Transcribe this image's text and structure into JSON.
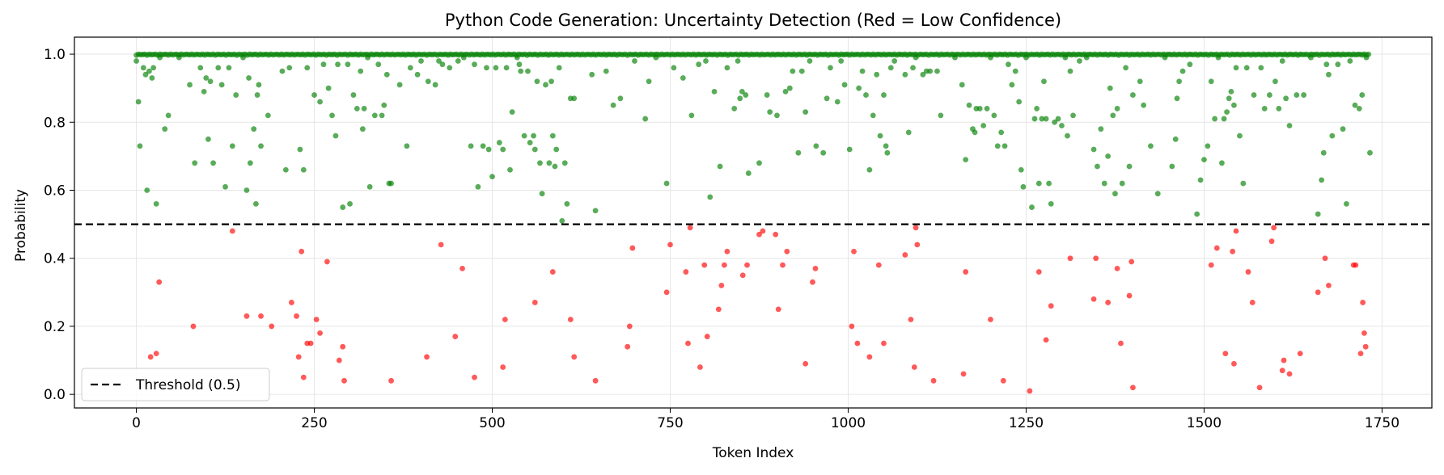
{
  "chart_data": {
    "type": "scatter",
    "title": "Python Code Generation: Uncertainty Detection (Red = Low Confidence)",
    "xlabel": "Token Index",
    "ylabel": "Probability",
    "xlim": [
      -87,
      1820
    ],
    "ylim": [
      -0.04,
      1.05
    ],
    "xticks": [
      0,
      250,
      500,
      750,
      1000,
      1250,
      1500,
      1750
    ],
    "yticks": [
      0.0,
      0.2,
      0.4,
      0.6,
      0.8,
      1.0
    ],
    "grid": true,
    "legend": {
      "position": "lower-left",
      "entries": [
        "Threshold (0.5)"
      ]
    },
    "threshold": {
      "value": 0.5,
      "label": "Threshold (0.5)",
      "style": "dashed",
      "color": "#000000"
    },
    "colors": {
      "high_confidence": "#008000",
      "low_confidence": "#ff0000"
    },
    "token_count": 1734,
    "high_confidence_points": [
      [
        0,
        0.98
      ],
      [
        3,
        0.86
      ],
      [
        5,
        0.73
      ],
      [
        10,
        0.96
      ],
      [
        13,
        0.94
      ],
      [
        15,
        0.6
      ],
      [
        18,
        0.95
      ],
      [
        22,
        0.93
      ],
      [
        24,
        0.96
      ],
      [
        28,
        0.56
      ],
      [
        33,
        0.99
      ],
      [
        40,
        0.78
      ],
      [
        45,
        0.82
      ],
      [
        60,
        0.99
      ],
      [
        75,
        0.91
      ],
      [
        82,
        0.68
      ],
      [
        90,
        0.96
      ],
      [
        95,
        0.89
      ],
      [
        98,
        0.93
      ],
      [
        101,
        0.75
      ],
      [
        104,
        0.92
      ],
      [
        108,
        0.68
      ],
      [
        115,
        0.96
      ],
      [
        120,
        0.91
      ],
      [
        125,
        0.61
      ],
      [
        130,
        0.96
      ],
      [
        135,
        0.73
      ],
      [
        140,
        0.88
      ],
      [
        150,
        0.99
      ],
      [
        155,
        0.6
      ],
      [
        158,
        0.93
      ],
      [
        160,
        0.68
      ],
      [
        165,
        0.78
      ],
      [
        168,
        0.56
      ],
      [
        170,
        0.88
      ],
      [
        172,
        0.91
      ],
      [
        175,
        0.73
      ],
      [
        185,
        0.82
      ],
      [
        205,
        0.95
      ],
      [
        210,
        0.66
      ],
      [
        215,
        0.96
      ],
      [
        230,
        0.72
      ],
      [
        235,
        0.66
      ],
      [
        240,
        0.96
      ],
      [
        250,
        0.88
      ],
      [
        258,
        0.86
      ],
      [
        263,
        0.97
      ],
      [
        270,
        0.9
      ],
      [
        275,
        0.82
      ],
      [
        280,
        0.76
      ],
      [
        283,
        0.97
      ],
      [
        290,
        0.55
      ],
      [
        297,
        0.97
      ],
      [
        300,
        0.56
      ],
      [
        305,
        0.88
      ],
      [
        310,
        0.84
      ],
      [
        315,
        0.95
      ],
      [
        318,
        0.78
      ],
      [
        320,
        0.84
      ],
      [
        325,
        0.99
      ],
      [
        328,
        0.61
      ],
      [
        335,
        0.82
      ],
      [
        340,
        0.97
      ],
      [
        345,
        0.82
      ],
      [
        348,
        0.85
      ],
      [
        352,
        0.94
      ],
      [
        355,
        0.62
      ],
      [
        358,
        0.62
      ],
      [
        370,
        0.91
      ],
      [
        380,
        0.73
      ],
      [
        385,
        0.96
      ],
      [
        395,
        0.94
      ],
      [
        400,
        0.98
      ],
      [
        410,
        0.92
      ],
      [
        420,
        0.91
      ],
      [
        425,
        0.98
      ],
      [
        430,
        0.97
      ],
      [
        440,
        0.96
      ],
      [
        452,
        0.98
      ],
      [
        460,
        0.99
      ],
      [
        470,
        0.73
      ],
      [
        475,
        0.97
      ],
      [
        480,
        0.61
      ],
      [
        487,
        0.73
      ],
      [
        492,
        0.96
      ],
      [
        495,
        0.72
      ],
      [
        500,
        0.64
      ],
      [
        505,
        0.96
      ],
      [
        510,
        0.74
      ],
      [
        515,
        0.72
      ],
      [
        520,
        0.96
      ],
      [
        525,
        0.66
      ],
      [
        528,
        0.83
      ],
      [
        535,
        0.99
      ],
      [
        538,
        0.97
      ],
      [
        540,
        0.95
      ],
      [
        545,
        0.76
      ],
      [
        550,
        0.95
      ],
      [
        553,
        0.74
      ],
      [
        558,
        0.76
      ],
      [
        560,
        0.72
      ],
      [
        563,
        0.92
      ],
      [
        567,
        0.68
      ],
      [
        570,
        0.59
      ],
      [
        575,
        0.91
      ],
      [
        580,
        0.68
      ],
      [
        583,
        0.92
      ],
      [
        585,
        0.76
      ],
      [
        588,
        0.67
      ],
      [
        590,
        0.72
      ],
      [
        594,
        0.96
      ],
      [
        598,
        0.51
      ],
      [
        602,
        0.68
      ],
      [
        605,
        0.56
      ],
      [
        610,
        0.87
      ],
      [
        615,
        0.87
      ],
      [
        640,
        0.94
      ],
      [
        645,
        0.54
      ],
      [
        660,
        0.95
      ],
      [
        670,
        0.85
      ],
      [
        680,
        0.87
      ],
      [
        700,
        0.98
      ],
      [
        715,
        0.81
      ],
      [
        720,
        0.92
      ],
      [
        730,
        0.99
      ],
      [
        745,
        0.62
      ],
      [
        755,
        0.96
      ],
      [
        768,
        0.93
      ],
      [
        780,
        0.82
      ],
      [
        790,
        0.97
      ],
      [
        800,
        0.98
      ],
      [
        806,
        0.58
      ],
      [
        812,
        0.89
      ],
      [
        820,
        0.67
      ],
      [
        830,
        0.96
      ],
      [
        840,
        0.84
      ],
      [
        845,
        0.98
      ],
      [
        848,
        0.87
      ],
      [
        851,
        0.89
      ],
      [
        856,
        0.88
      ],
      [
        860,
        0.65
      ],
      [
        875,
        0.68
      ],
      [
        886,
        0.88
      ],
      [
        890,
        0.83
      ],
      [
        900,
        0.82
      ],
      [
        912,
        0.89
      ],
      [
        918,
        0.9
      ],
      [
        922,
        0.95
      ],
      [
        930,
        0.71
      ],
      [
        935,
        0.95
      ],
      [
        940,
        0.83
      ],
      [
        946,
        0.98
      ],
      [
        955,
        0.73
      ],
      [
        965,
        0.71
      ],
      [
        970,
        0.87
      ],
      [
        975,
        0.96
      ],
      [
        985,
        0.86
      ],
      [
        990,
        0.98
      ],
      [
        995,
        0.91
      ],
      [
        1002,
        0.72
      ],
      [
        1015,
        0.9
      ],
      [
        1020,
        0.95
      ],
      [
        1025,
        0.88
      ],
      [
        1030,
        0.66
      ],
      [
        1035,
        0.82
      ],
      [
        1040,
        0.94
      ],
      [
        1045,
        0.76
      ],
      [
        1050,
        0.88
      ],
      [
        1053,
        0.73
      ],
      [
        1055,
        0.71
      ],
      [
        1060,
        0.96
      ],
      [
        1065,
        0.98
      ],
      [
        1080,
        0.94
      ],
      [
        1085,
        0.77
      ],
      [
        1091,
        0.96
      ],
      [
        1095,
        0.99
      ],
      [
        1105,
        0.94
      ],
      [
        1110,
        0.95
      ],
      [
        1115,
        0.95
      ],
      [
        1125,
        0.95
      ],
      [
        1130,
        0.82
      ],
      [
        1150,
        0.99
      ],
      [
        1160,
        0.91
      ],
      [
        1165,
        0.69
      ],
      [
        1170,
        0.85
      ],
      [
        1175,
        0.78
      ],
      [
        1178,
        0.77
      ],
      [
        1180,
        0.84
      ],
      [
        1185,
        0.84
      ],
      [
        1190,
        0.79
      ],
      [
        1195,
        0.84
      ],
      [
        1200,
        0.99
      ],
      [
        1205,
        0.82
      ],
      [
        1210,
        0.73
      ],
      [
        1215,
        0.77
      ],
      [
        1220,
        0.73
      ],
      [
        1225,
        0.97
      ],
      [
        1230,
        0.91
      ],
      [
        1235,
        0.95
      ],
      [
        1240,
        0.86
      ],
      [
        1243,
        0.66
      ],
      [
        1246,
        0.61
      ],
      [
        1250,
        0.99
      ],
      [
        1258,
        0.55
      ],
      [
        1262,
        0.81
      ],
      [
        1265,
        0.84
      ],
      [
        1268,
        0.62
      ],
      [
        1272,
        0.81
      ],
      [
        1275,
        0.92
      ],
      [
        1278,
        0.81
      ],
      [
        1282,
        0.62
      ],
      [
        1285,
        0.56
      ],
      [
        1290,
        0.8
      ],
      [
        1295,
        0.81
      ],
      [
        1300,
        0.79
      ],
      [
        1305,
        0.99
      ],
      [
        1308,
        0.76
      ],
      [
        1312,
        0.95
      ],
      [
        1316,
        0.82
      ],
      [
        1325,
        0.98
      ],
      [
        1335,
        0.99
      ],
      [
        1345,
        0.72
      ],
      [
        1350,
        0.67
      ],
      [
        1355,
        0.78
      ],
      [
        1360,
        0.62
      ],
      [
        1365,
        0.7
      ],
      [
        1368,
        0.9
      ],
      [
        1372,
        0.82
      ],
      [
        1375,
        0.59
      ],
      [
        1378,
        0.84
      ],
      [
        1385,
        0.62
      ],
      [
        1390,
        0.96
      ],
      [
        1395,
        0.67
      ],
      [
        1400,
        0.88
      ],
      [
        1410,
        0.92
      ],
      [
        1415,
        0.85
      ],
      [
        1425,
        0.73
      ],
      [
        1435,
        0.59
      ],
      [
        1445,
        0.99
      ],
      [
        1455,
        0.67
      ],
      [
        1460,
        0.75
      ],
      [
        1462,
        0.87
      ],
      [
        1465,
        0.92
      ],
      [
        1470,
        0.95
      ],
      [
        1480,
        0.97
      ],
      [
        1490,
        0.53
      ],
      [
        1495,
        0.63
      ],
      [
        1500,
        0.69
      ],
      [
        1505,
        0.73
      ],
      [
        1510,
        0.92
      ],
      [
        1515,
        0.81
      ],
      [
        1520,
        0.99
      ],
      [
        1525,
        0.68
      ],
      [
        1528,
        0.81
      ],
      [
        1532,
        0.83
      ],
      [
        1535,
        0.87
      ],
      [
        1538,
        0.89
      ],
      [
        1542,
        0.85
      ],
      [
        1545,
        0.96
      ],
      [
        1550,
        0.76
      ],
      [
        1555,
        0.62
      ],
      [
        1560,
        0.96
      ],
      [
        1570,
        0.88
      ],
      [
        1580,
        0.96
      ],
      [
        1585,
        0.84
      ],
      [
        1592,
        0.88
      ],
      [
        1600,
        0.92
      ],
      [
        1605,
        0.84
      ],
      [
        1610,
        0.98
      ],
      [
        1615,
        0.87
      ],
      [
        1620,
        0.79
      ],
      [
        1630,
        0.88
      ],
      [
        1640,
        0.88
      ],
      [
        1650,
        0.99
      ],
      [
        1660,
        0.53
      ],
      [
        1665,
        0.63
      ],
      [
        1668,
        0.71
      ],
      [
        1672,
        0.97
      ],
      [
        1675,
        0.94
      ],
      [
        1680,
        0.76
      ],
      [
        1688,
        0.97
      ],
      [
        1695,
        0.78
      ],
      [
        1700,
        0.56
      ],
      [
        1705,
        0.98
      ],
      [
        1712,
        0.85
      ],
      [
        1718,
        0.84
      ],
      [
        1722,
        0.88
      ],
      [
        1728,
        0.99
      ],
      [
        1733,
        0.71
      ]
    ],
    "low_confidence_points": [
      [
        20,
        0.11
      ],
      [
        28,
        0.12
      ],
      [
        32,
        0.33
      ],
      [
        80,
        0.2
      ],
      [
        135,
        0.48
      ],
      [
        155,
        0.23
      ],
      [
        175,
        0.23
      ],
      [
        190,
        0.2
      ],
      [
        218,
        0.27
      ],
      [
        225,
        0.23
      ],
      [
        228,
        0.11
      ],
      [
        232,
        0.42
      ],
      [
        235,
        0.05
      ],
      [
        240,
        0.15
      ],
      [
        245,
        0.15
      ],
      [
        253,
        0.22
      ],
      [
        258,
        0.18
      ],
      [
        268,
        0.39
      ],
      [
        285,
        0.1
      ],
      [
        290,
        0.14
      ],
      [
        292,
        0.04
      ],
      [
        358,
        0.04
      ],
      [
        408,
        0.11
      ],
      [
        428,
        0.44
      ],
      [
        448,
        0.17
      ],
      [
        458,
        0.37
      ],
      [
        475,
        0.05
      ],
      [
        515,
        0.08
      ],
      [
        518,
        0.22
      ],
      [
        560,
        0.27
      ],
      [
        585,
        0.36
      ],
      [
        610,
        0.22
      ],
      [
        615,
        0.11
      ],
      [
        645,
        0.04
      ],
      [
        690,
        0.14
      ],
      [
        693,
        0.2
      ],
      [
        697,
        0.43
      ],
      [
        745,
        0.3
      ],
      [
        750,
        0.44
      ],
      [
        772,
        0.36
      ],
      [
        775,
        0.15
      ],
      [
        778,
        0.49
      ],
      [
        792,
        0.08
      ],
      [
        798,
        0.38
      ],
      [
        802,
        0.17
      ],
      [
        818,
        0.25
      ],
      [
        822,
        0.32
      ],
      [
        826,
        0.38
      ],
      [
        830,
        0.42
      ],
      [
        852,
        0.35
      ],
      [
        858,
        0.38
      ],
      [
        875,
        0.47
      ],
      [
        880,
        0.48
      ],
      [
        898,
        0.47
      ],
      [
        902,
        0.25
      ],
      [
        908,
        0.38
      ],
      [
        914,
        0.42
      ],
      [
        940,
        0.09
      ],
      [
        950,
        0.33
      ],
      [
        954,
        0.37
      ],
      [
        1005,
        0.2
      ],
      [
        1008,
        0.42
      ],
      [
        1013,
        0.15
      ],
      [
        1030,
        0.11
      ],
      [
        1043,
        0.38
      ],
      [
        1050,
        0.15
      ],
      [
        1080,
        0.41
      ],
      [
        1088,
        0.22
      ],
      [
        1093,
        0.08
      ],
      [
        1097,
        0.44
      ],
      [
        1095,
        0.49
      ],
      [
        1120,
        0.04
      ],
      [
        1162,
        0.06
      ],
      [
        1165,
        0.36
      ],
      [
        1200,
        0.22
      ],
      [
        1218,
        0.04
      ],
      [
        1255,
        0.01
      ],
      [
        1268,
        0.36
      ],
      [
        1278,
        0.16
      ],
      [
        1285,
        0.26
      ],
      [
        1312,
        0.4
      ],
      [
        1345,
        0.28
      ],
      [
        1348,
        0.4
      ],
      [
        1365,
        0.27
      ],
      [
        1378,
        0.37
      ],
      [
        1383,
        0.15
      ],
      [
        1395,
        0.29
      ],
      [
        1398,
        0.39
      ],
      [
        1400,
        0.02
      ],
      [
        1510,
        0.38
      ],
      [
        1518,
        0.43
      ],
      [
        1530,
        0.12
      ],
      [
        1540,
        0.42
      ],
      [
        1542,
        0.09
      ],
      [
        1545,
        0.48
      ],
      [
        1562,
        0.36
      ],
      [
        1568,
        0.27
      ],
      [
        1578,
        0.02
      ],
      [
        1595,
        0.45
      ],
      [
        1598,
        0.49
      ],
      [
        1610,
        0.07
      ],
      [
        1612,
        0.1
      ],
      [
        1620,
        0.06
      ],
      [
        1635,
        0.12
      ],
      [
        1660,
        0.3
      ],
      [
        1670,
        0.4
      ],
      [
        1675,
        0.32
      ],
      [
        1710,
        0.38
      ],
      [
        1713,
        0.38
      ],
      [
        1720,
        0.12
      ],
      [
        1723,
        0.27
      ],
      [
        1725,
        0.18
      ],
      [
        1727,
        0.14
      ]
    ]
  }
}
